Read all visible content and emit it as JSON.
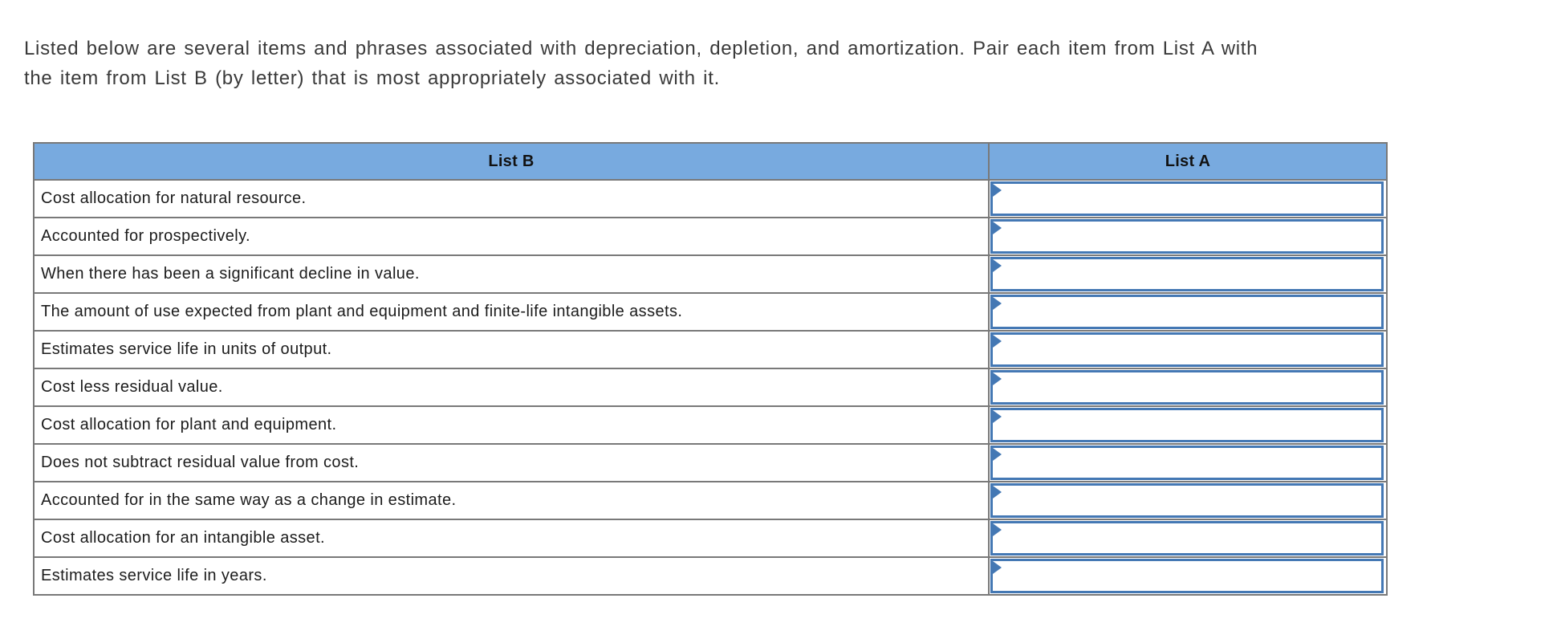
{
  "question": {
    "line1": "Listed below are several items and phrases associated with depreciation, depletion, and amortization. Pair each item from List A with",
    "line2": "the item from List B (by letter) that is most appropriately associated with it."
  },
  "table": {
    "headers": {
      "list_b": "List B",
      "list_a": "List A"
    },
    "rows": [
      {
        "phrase": "Cost allocation for natural resource.",
        "answer": ""
      },
      {
        "phrase": "Accounted for prospectively.",
        "answer": ""
      },
      {
        "phrase": "When there has been a significant decline in value.",
        "answer": ""
      },
      {
        "phrase": "The amount of use expected from plant and equipment and finite-life intangible assets.",
        "answer": ""
      },
      {
        "phrase": "Estimates service life in units of output.",
        "answer": ""
      },
      {
        "phrase": "Cost less residual value.",
        "answer": ""
      },
      {
        "phrase": "Cost allocation for plant and equipment.",
        "answer": ""
      },
      {
        "phrase": "Does not subtract residual value from cost.",
        "answer": ""
      },
      {
        "phrase": "Accounted for in the same way as a change in estimate.",
        "answer": ""
      },
      {
        "phrase": "Cost allocation for an intangible asset.",
        "answer": ""
      },
      {
        "phrase": "Estimates service life in years.",
        "answer": ""
      }
    ]
  },
  "colors": {
    "header_bg": "#78aadf",
    "table_border": "#797979",
    "dropdown_border": "#4478b4",
    "question_text": "#3a3a3a",
    "row_text": "#1c1c1c"
  }
}
